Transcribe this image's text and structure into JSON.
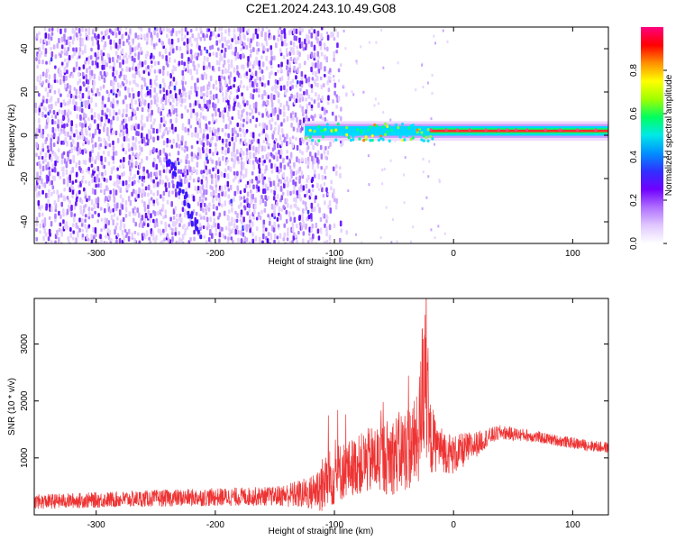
{
  "title": "C2E1.2024.243.10.49.G08",
  "chart_data": [
    {
      "type": "heatmap",
      "xlabel": "Height of straight line (km)",
      "ylabel": "Frequency (Hz)",
      "xlim": [
        -352,
        130
      ],
      "ylim": [
        -50,
        50
      ],
      "xticks": [
        -300,
        -200,
        -100,
        0,
        100
      ],
      "yticks": [
        -40,
        -20,
        0,
        20,
        40
      ],
      "grid": false,
      "colorbar": {
        "label": "Normalized spectral amplitude",
        "range": [
          0,
          1
        ],
        "ticks": [
          0.0,
          0.2,
          0.4,
          0.6,
          0.8
        ],
        "colors": [
          "#ffffff",
          "#e0c8ff",
          "#b070ff",
          "#7000ff",
          "#3030ff",
          "#0090ff",
          "#00e8e8",
          "#00ff60",
          "#a0ff00",
          "#ffff00",
          "#ff9000",
          "#ff0000",
          "#ff0080"
        ]
      },
      "features": {
        "noise_region_x": [
          -352,
          -110
        ],
        "tone_start_x": -125,
        "tone_frequency_hz": 2,
        "doppler_trail": [
          [
            -240,
            -10
          ],
          [
            -215,
            -45
          ]
        ]
      }
    },
    {
      "type": "line",
      "xlabel": "Height of straight line (km)",
      "ylabel": "SNR (10 * v/v)",
      "xlim": [
        -352,
        130
      ],
      "ylim": [
        0,
        3800
      ],
      "xticks": [
        -300,
        -200,
        -100,
        0,
        100
      ],
      "yticks": [
        1000,
        2000,
        3000
      ],
      "grid": false,
      "series": [
        {
          "color": "#ee3333",
          "x": [
            -352,
            -300,
            -250,
            -200,
            -150,
            -120,
            -110,
            -100,
            -90,
            -80,
            -70,
            -60,
            -50,
            -40,
            -30,
            -25,
            -20,
            -15,
            -10,
            0,
            10,
            20,
            30,
            40,
            50,
            60,
            80,
            100,
            120,
            130
          ],
          "y": [
            230,
            260,
            290,
            310,
            330,
            380,
            520,
            700,
            800,
            880,
            950,
            1000,
            1050,
            1150,
            1300,
            2200,
            1350,
            1250,
            1150,
            1050,
            1150,
            1250,
            1380,
            1450,
            1420,
            1400,
            1330,
            1260,
            1200,
            1180
          ],
          "spread": [
            130,
            140,
            150,
            160,
            170,
            300,
            500,
            550,
            500,
            520,
            600,
            650,
            700,
            750,
            800,
            1500,
            700,
            500,
            400,
            350,
            300,
            220,
            150,
            130,
            120,
            110,
            100,
            100,
            100,
            100
          ]
        }
      ]
    }
  ]
}
